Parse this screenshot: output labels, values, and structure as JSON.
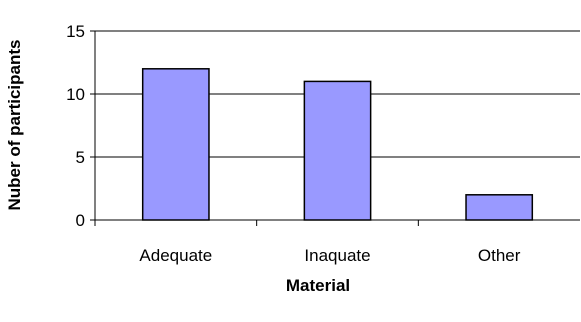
{
  "chart_data": {
    "type": "bar",
    "categories": [
      "Adequate",
      "Inaquate",
      "Other"
    ],
    "values": [
      12,
      11,
      2
    ],
    "xlabel": "Material",
    "ylabel": "Nuber of participants",
    "ylim": [
      0,
      15
    ],
    "yticks": [
      0,
      5,
      10,
      15
    ],
    "grid": true,
    "bar_color": "#9999ff",
    "bar_edge_color": "#000000"
  }
}
